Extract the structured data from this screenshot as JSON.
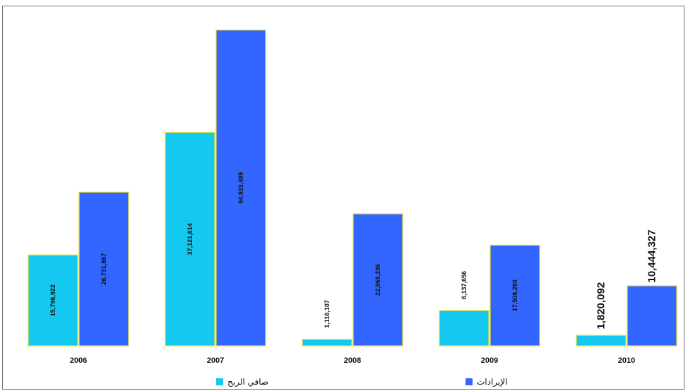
{
  "chart_data": {
    "type": "bar",
    "categories": [
      "2006",
      "2007",
      "2008",
      "2009",
      "2010"
    ],
    "series": [
      {
        "name": "صافي الربح",
        "color": "#14c8f0",
        "values": [
          15796922,
          37121614,
          1116107,
          6137656,
          1820092
        ],
        "labels": [
          "15,796,922",
          "37,121,614",
          "1,116,107",
          "6,137,656",
          "1,820,092"
        ]
      },
      {
        "name": "الإيرادات",
        "color": "#3366ff",
        "values": [
          26731867,
          54933485,
          22969336,
          17508280,
          10444327
        ],
        "labels": [
          "26,731,867",
          "54,933,485",
          "22,969,336",
          "17,508,280",
          "10,444,327"
        ]
      }
    ],
    "ylim": [
      0,
      55000000
    ],
    "grid": false,
    "legend_position": "bottom"
  }
}
